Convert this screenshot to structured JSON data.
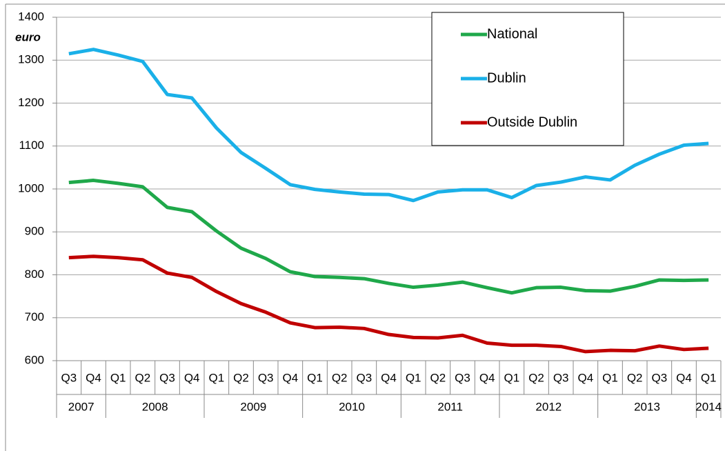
{
  "chart_data": {
    "type": "line",
    "y_axis_label": "euro",
    "categories": [
      "Q3",
      "Q4",
      "Q1",
      "Q2",
      "Q3",
      "Q4",
      "Q1",
      "Q2",
      "Q3",
      "Q4",
      "Q1",
      "Q2",
      "Q3",
      "Q4",
      "Q1",
      "Q2",
      "Q3",
      "Q4",
      "Q1",
      "Q2",
      "Q3",
      "Q4",
      "Q1",
      "Q2",
      "Q3",
      "Q4",
      "Q1"
    ],
    "year_labels": [
      "2007",
      null,
      "2008",
      null,
      null,
      null,
      "2009",
      null,
      null,
      null,
      "2010",
      null,
      null,
      null,
      "2011",
      null,
      null,
      null,
      "2012",
      null,
      null,
      null,
      "2013",
      null,
      null,
      null,
      "2014"
    ],
    "ylim": [
      600,
      1400
    ],
    "yticks": [
      600,
      700,
      800,
      900,
      1000,
      1100,
      1200,
      1300,
      1400
    ],
    "grid": true,
    "legend": "top-right",
    "series": [
      {
        "name": "National",
        "color": "#1fa84a",
        "values": [
          1015,
          1020,
          1013,
          1005,
          957,
          947,
          902,
          862,
          838,
          807,
          796,
          794,
          791,
          780,
          771,
          776,
          783,
          770,
          758,
          770,
          771,
          763,
          762,
          773,
          788,
          787,
          788
        ]
      },
      {
        "name": "Dublin",
        "color": "#1ab0e8",
        "values": [
          1315,
          1325,
          1312,
          1297,
          1220,
          1212,
          1142,
          1085,
          1048,
          1010,
          999,
          993,
          988,
          987,
          973,
          993,
          998,
          998,
          980,
          1008,
          1016,
          1028,
          1021,
          1055,
          1081,
          1102,
          1106
        ]
      },
      {
        "name": "Outside Dublin",
        "color": "#c00000",
        "values": [
          840,
          843,
          840,
          835,
          804,
          794,
          761,
          733,
          713,
          688,
          677,
          678,
          675,
          661,
          654,
          653,
          659,
          641,
          636,
          636,
          633,
          621,
          624,
          623,
          634,
          626,
          629
        ]
      }
    ]
  }
}
